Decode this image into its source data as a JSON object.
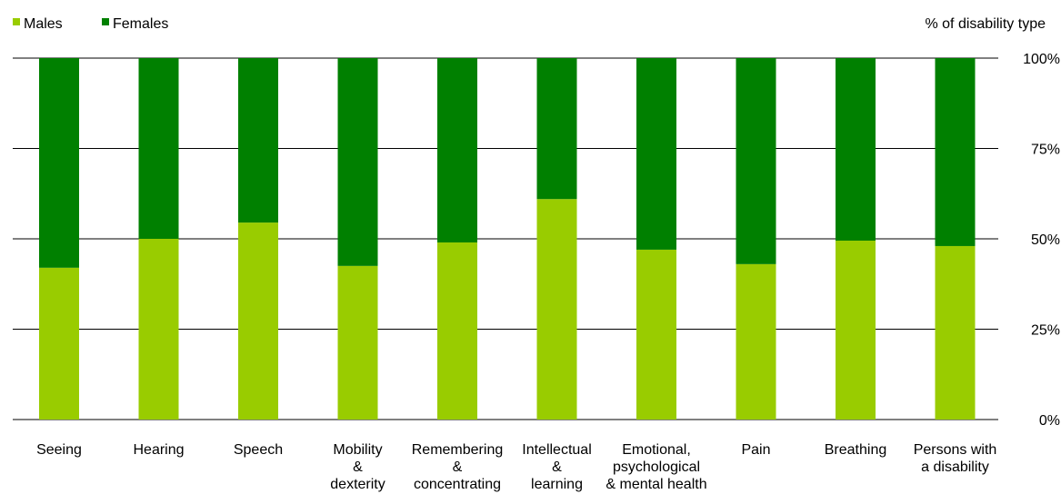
{
  "chart_data": {
    "type": "bar",
    "stacked": true,
    "ylabel": "% of disability type",
    "ylim": [
      0,
      100
    ],
    "y_ticks": [
      "0%",
      "25%",
      "50%",
      "75%",
      "100%"
    ],
    "y_tick_values": [
      0,
      25,
      50,
      75,
      100
    ],
    "grid": true,
    "legend_position": "top-left",
    "categories": [
      [
        "Seeing"
      ],
      [
        "Hearing"
      ],
      [
        "Speech"
      ],
      [
        "Mobility",
        "&",
        "dexterity"
      ],
      [
        "Remembering",
        "&",
        "concentrating"
      ],
      [
        "Intellectual",
        "&",
        "learning"
      ],
      [
        "Emotional,",
        "psychological",
        "& mental health"
      ],
      [
        "Pain"
      ],
      [
        "Breathing"
      ],
      [
        "Persons with",
        "a disability"
      ]
    ],
    "series": [
      {
        "name": "Males",
        "color": "#99cc00",
        "values": [
          42,
          50,
          54.5,
          42.5,
          49,
          61,
          47,
          43,
          49.5,
          48
        ]
      },
      {
        "name": "Females",
        "color": "#008000",
        "values": [
          58,
          50,
          45.5,
          57.5,
          51,
          39,
          53,
          57,
          50.5,
          52
        ]
      }
    ]
  }
}
